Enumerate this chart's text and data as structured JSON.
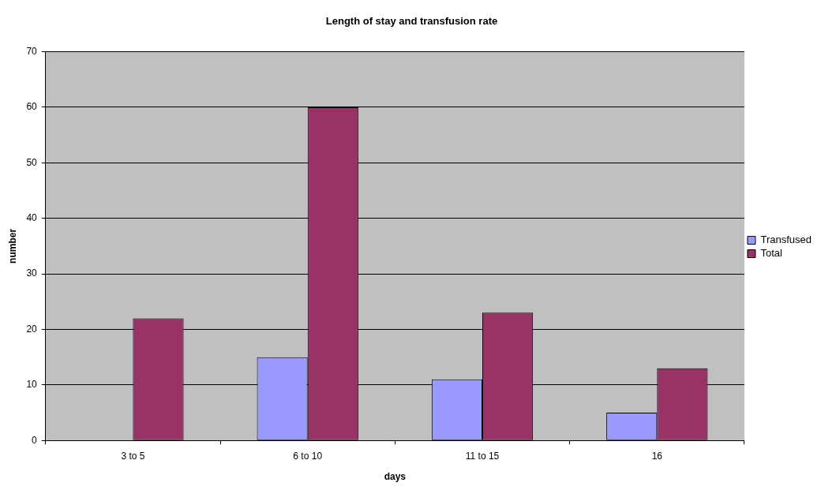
{
  "chart_data": {
    "type": "bar",
    "title": "Length of stay and transfusion rate",
    "xlabel": "days",
    "ylabel": "number",
    "categories": [
      "3 to 5",
      "6 to 10",
      "11 to 15",
      "16"
    ],
    "series": [
      {
        "name": "Transfused",
        "color": "#9999ff",
        "values": [
          0,
          15,
          11,
          5
        ]
      },
      {
        "name": "Total",
        "color": "#993366",
        "values": [
          22,
          60,
          23,
          13
        ]
      }
    ],
    "ylim": [
      0,
      70
    ],
    "yticks": [
      0,
      10,
      20,
      30,
      40,
      50,
      60,
      70
    ],
    "grid": "y",
    "legend": "right"
  }
}
